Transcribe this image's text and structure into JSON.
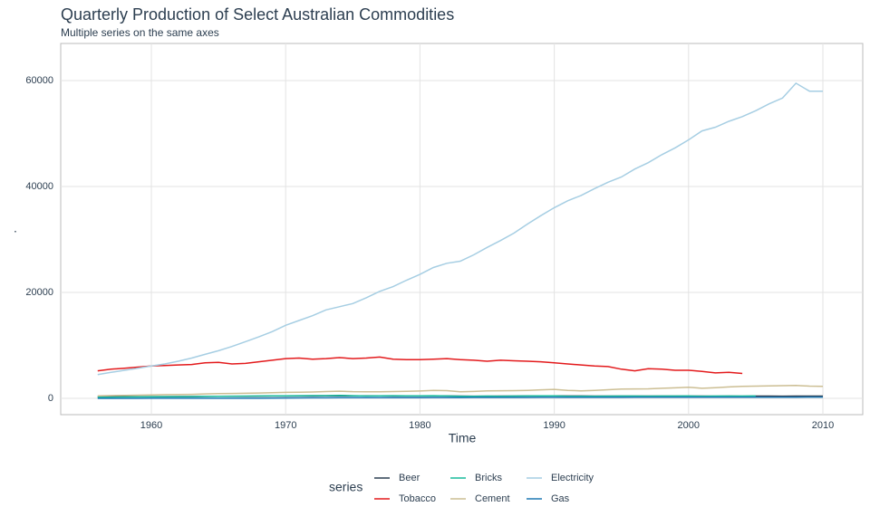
{
  "chart_data": {
    "type": "line",
    "title": "Quarterly Production of Select Australian Commodities",
    "subtitle": "Multiple series on the same axes",
    "x_label": "Time",
    "y_label": ".",
    "legend_title": "series",
    "grid": true,
    "legend_position": "bottom",
    "xlim": [
      1953.25,
      2012.97
    ],
    "ylim": [
      -3077,
      67009
    ],
    "xticks": [
      1960,
      1970,
      1980,
      1990,
      2000,
      2010
    ],
    "yticks": [
      0,
      20000,
      40000,
      60000
    ],
    "x": [
      1956,
      1957,
      1958,
      1959,
      1960,
      1961,
      1962,
      1963,
      1964,
      1965,
      1966,
      1967,
      1968,
      1969,
      1970,
      1971,
      1972,
      1973,
      1974,
      1975,
      1976,
      1977,
      1978,
      1979,
      1980,
      1981,
      1982,
      1983,
      1984,
      1985,
      1986,
      1987,
      1988,
      1989,
      1990,
      1991,
      1992,
      1993,
      1994,
      1995,
      1996,
      1997,
      1998,
      1999,
      2000,
      2001,
      2002,
      2003,
      2004,
      2005,
      2006,
      2007,
      2008,
      2009,
      2010
    ],
    "series": [
      {
        "name": "Beer",
        "color": "#2c3e50",
        "values": [
          280,
          290,
          300,
          310,
          320,
          330,
          340,
          350,
          360,
          380,
          390,
          400,
          410,
          420,
          430,
          440,
          450,
          460,
          470,
          480,
          470,
          460,
          450,
          450,
          450,
          450,
          440,
          420,
          410,
          410,
          420,
          430,
          440,
          450,
          460,
          440,
          440,
          430,
          430,
          430,
          430,
          420,
          420,
          420,
          420,
          420,
          410,
          420,
          410,
          420,
          420,
          410,
          420,
          420,
          420
        ]
      },
      {
        "name": "Tobacco",
        "color": "#e31a1c",
        "values": [
          5200,
          5500,
          5700,
          5900,
          6100,
          6200,
          6300,
          6400,
          6700,
          6800,
          6500,
          6600,
          6900,
          7200,
          7500,
          7600,
          7400,
          7500,
          7700,
          7500,
          7600,
          7800,
          7400,
          7300,
          7300,
          7400,
          7500,
          7300,
          7200,
          7000,
          7200,
          7100,
          7000,
          6900,
          6700,
          6500,
          6300,
          6100,
          6000,
          5500,
          5200,
          5600,
          5500,
          5300,
          5300,
          5100,
          4800,
          4900,
          4700,
          null,
          null,
          null,
          null,
          null,
          null
        ]
      },
      {
        "name": "Bricks",
        "color": "#18bc9c",
        "values": [
          200,
          230,
          250,
          280,
          300,
          320,
          330,
          340,
          370,
          390,
          410,
          420,
          440,
          460,
          480,
          500,
          510,
          520,
          560,
          490,
          450,
          480,
          500,
          470,
          480,
          490,
          450,
          380,
          400,
          420,
          400,
          420,
          450,
          470,
          480,
          400,
          370,
          380,
          410,
          420,
          420,
          410,
          420,
          430,
          440,
          390,
          420,
          430,
          430,
          440,
          null,
          null,
          null,
          null,
          null
        ]
      },
      {
        "name": "Cement",
        "color": "#ccbe93",
        "values": [
          470,
          520,
          560,
          600,
          650,
          700,
          720,
          760,
          840,
          900,
          930,
          960,
          1000,
          1080,
          1130,
          1170,
          1200,
          1280,
          1350,
          1270,
          1240,
          1250,
          1280,
          1310,
          1380,
          1500,
          1460,
          1250,
          1300,
          1400,
          1430,
          1450,
          1500,
          1600,
          1700,
          1500,
          1420,
          1500,
          1620,
          1750,
          1780,
          1800,
          1900,
          1980,
          2100,
          1900,
          2000,
          2150,
          2250,
          2300,
          2350,
          2400,
          2450,
          2300,
          2250
        ]
      },
      {
        "name": "Electricity",
        "color": "#a6cee3",
        "values": [
          4500,
          4900,
          5300,
          5700,
          6100,
          6500,
          7000,
          7600,
          8300,
          9000,
          9800,
          10700,
          11600,
          12600,
          13800,
          14700,
          15600,
          16700,
          17300,
          17900,
          19000,
          20200,
          21100,
          22300,
          23400,
          24700,
          25500,
          25900,
          27100,
          28500,
          29800,
          31200,
          32900,
          34500,
          36000,
          37300,
          38300,
          39600,
          40800,
          41800,
          43300,
          44500,
          46000,
          47300,
          48800,
          50500,
          51200,
          52300,
          53200,
          54300,
          55600,
          56700,
          59500,
          58000,
          58000
        ]
      },
      {
        "name": "Gas",
        "color": "#1f78b4",
        "values": [
          5,
          6,
          7,
          8,
          9,
          10,
          11,
          12,
          13,
          14,
          16,
          18,
          25,
          40,
          60,
          80,
          95,
          105,
          115,
          120,
          125,
          130,
          135,
          140,
          145,
          150,
          155,
          160,
          165,
          165,
          170,
          170,
          175,
          180,
          185,
          185,
          190,
          190,
          195,
          195,
          200,
          200,
          205,
          205,
          210,
          210,
          215,
          215,
          220,
          220,
          225,
          225,
          230,
          235,
          236
        ]
      }
    ]
  }
}
